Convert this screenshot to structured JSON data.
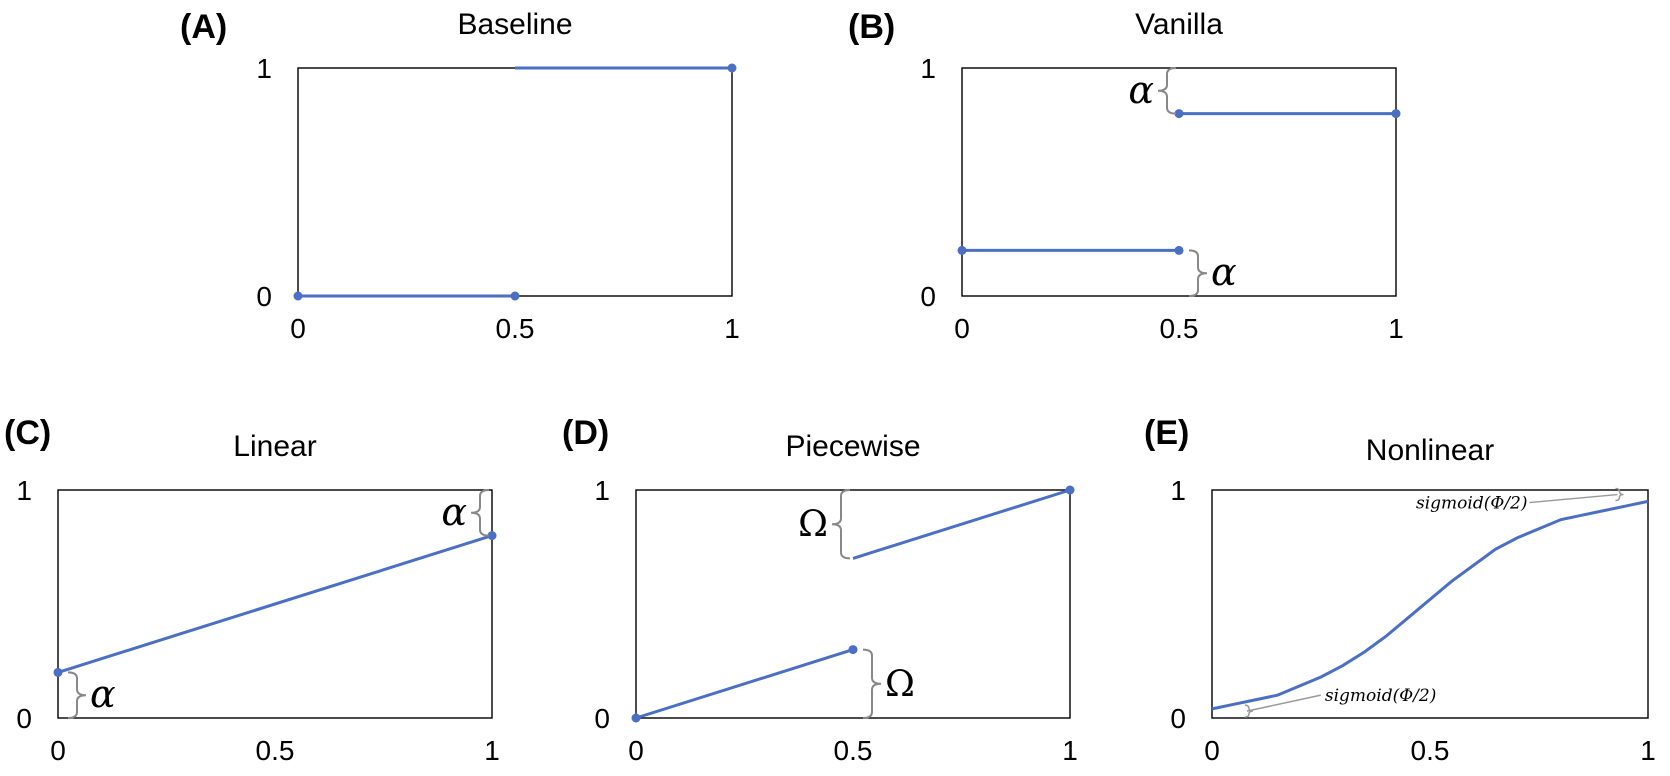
{
  "chart_data": [
    {
      "id": "A",
      "label": "(A)",
      "type": "line",
      "title": "Baseline",
      "xticks": [
        "0",
        "0.5",
        "1"
      ],
      "yticks": [
        "0",
        "1"
      ],
      "xlim": [
        0,
        1
      ],
      "ylim": [
        0,
        1
      ],
      "series": [
        {
          "name": "left",
          "x": [
            0,
            0.5
          ],
          "y": [
            0,
            0
          ]
        },
        {
          "name": "right",
          "x": [
            0.5,
            1
          ],
          "y": [
            1,
            1
          ]
        }
      ],
      "points": [
        {
          "x": 0,
          "y": 0
        },
        {
          "x": 0.5,
          "y": 0
        },
        {
          "x": 1,
          "y": 1
        }
      ],
      "annotations": []
    },
    {
      "id": "B",
      "label": "(B)",
      "type": "line",
      "title": "Vanilla",
      "xticks": [
        "0",
        "0.5",
        "1"
      ],
      "yticks": [
        "0",
        "1"
      ],
      "xlim": [
        0,
        1
      ],
      "ylim": [
        0,
        1
      ],
      "series": [
        {
          "name": "left",
          "x": [
            0,
            0.5
          ],
          "y": [
            0.2,
            0.2
          ]
        },
        {
          "name": "right",
          "x": [
            0.5,
            1
          ],
          "y": [
            0.8,
            0.8
          ]
        }
      ],
      "points": [
        {
          "x": 0,
          "y": 0.2
        },
        {
          "x": 0.5,
          "y": 0.2
        },
        {
          "x": 0.5,
          "y": 0.8
        },
        {
          "x": 1,
          "y": 0.8
        }
      ],
      "annotations": [
        {
          "text": "α",
          "kind": "brace",
          "x": 0.5,
          "y0": 0.8,
          "y1": 1,
          "side": "left"
        },
        {
          "text": "α",
          "kind": "brace",
          "x": 0.5,
          "y0": 0,
          "y1": 0.2,
          "side": "right"
        }
      ]
    },
    {
      "id": "C",
      "label": "(C)",
      "type": "line",
      "title": "Linear",
      "xticks": [
        "0",
        "0.5",
        "1"
      ],
      "yticks": [
        "0",
        "1"
      ],
      "xlim": [
        0,
        1
      ],
      "ylim": [
        0,
        1
      ],
      "series": [
        {
          "name": "line",
          "x": [
            0,
            1
          ],
          "y": [
            0.2,
            0.8
          ]
        }
      ],
      "points": [
        {
          "x": 0,
          "y": 0.2
        },
        {
          "x": 1,
          "y": 0.8
        }
      ],
      "annotations": [
        {
          "text": "α",
          "kind": "brace",
          "x": 1,
          "y0": 0.8,
          "y1": 1,
          "side": "left"
        },
        {
          "text": "α",
          "kind": "brace",
          "x": 0,
          "y0": 0,
          "y1": 0.2,
          "side": "right"
        }
      ]
    },
    {
      "id": "D",
      "label": "(D)",
      "type": "line",
      "title": "Piecewise",
      "xticks": [
        "0",
        "0.5",
        "1"
      ],
      "yticks": [
        "0",
        "1"
      ],
      "xlim": [
        0,
        1
      ],
      "ylim": [
        0,
        1
      ],
      "series": [
        {
          "name": "left",
          "x": [
            0,
            0.5
          ],
          "y": [
            0,
            0.3
          ]
        },
        {
          "name": "right",
          "x": [
            0.5,
            1
          ],
          "y": [
            0.7,
            1
          ]
        }
      ],
      "points": [
        {
          "x": 0,
          "y": 0
        },
        {
          "x": 0.5,
          "y": 0.3
        },
        {
          "x": 1,
          "y": 1
        }
      ],
      "annotations": [
        {
          "text": "Ω",
          "kind": "brace",
          "x": 0.5,
          "y0": 0.7,
          "y1": 1,
          "side": "left"
        },
        {
          "text": "Ω",
          "kind": "brace",
          "x": 0.5,
          "y0": 0,
          "y1": 0.3,
          "side": "right"
        }
      ]
    },
    {
      "id": "E",
      "label": "(E)",
      "type": "line",
      "title": "Nonlinear",
      "xticks": [
        "0",
        "0.5",
        "1"
      ],
      "yticks": [
        "0",
        "1"
      ],
      "xlim": [
        0,
        1
      ],
      "ylim": [
        0,
        1
      ],
      "series": [
        {
          "name": "sigmoid",
          "x": [
            0,
            0.05,
            0.1,
            0.15,
            0.2,
            0.25,
            0.3,
            0.35,
            0.4,
            0.45,
            0.5,
            0.55,
            0.6,
            0.65,
            0.7,
            0.75,
            0.8,
            0.85,
            0.9,
            0.95,
            1
          ],
          "y": [
            0.04,
            0.06,
            0.08,
            0.1,
            0.14,
            0.18,
            0.23,
            0.29,
            0.36,
            0.44,
            0.52,
            0.6,
            0.67,
            0.74,
            0.79,
            0.83,
            0.87,
            0.89,
            0.91,
            0.93,
            0.95
          ]
        }
      ],
      "points": [],
      "annotations": [
        {
          "text": "sigmoid(Φ/2)",
          "kind": "leader",
          "target_x": 0.93,
          "target_y": 0.98,
          "position": "upper-left"
        },
        {
          "text": "sigmoid(Φ/2)",
          "kind": "leader",
          "target_x": 0.08,
          "target_y": 0.03,
          "position": "lower-right"
        }
      ]
    }
  ]
}
